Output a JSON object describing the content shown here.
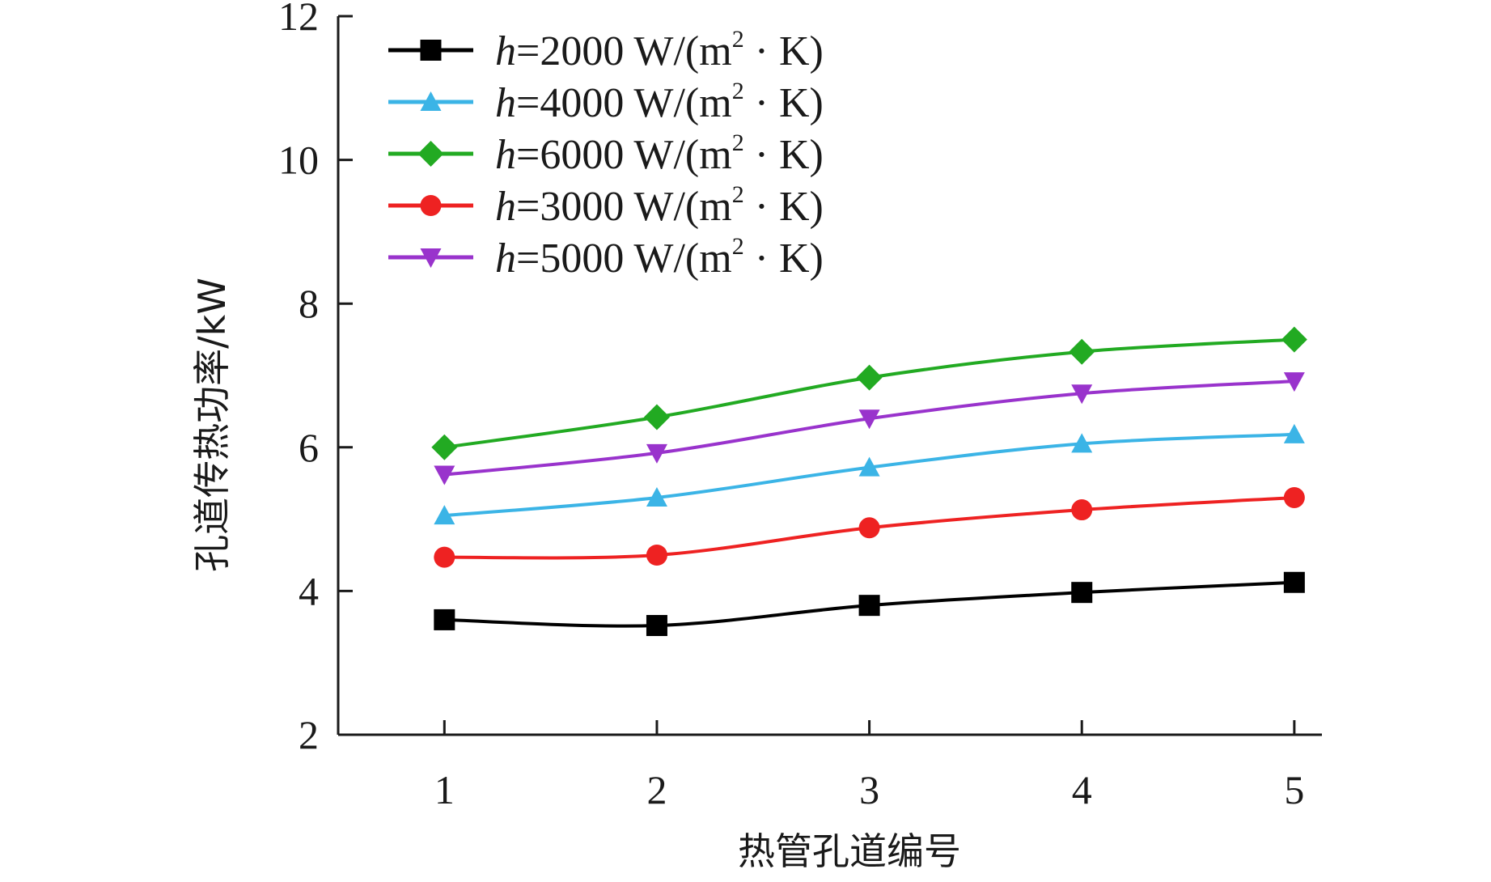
{
  "chart_data": {
    "type": "line",
    "xlabel": "热管孔道编号",
    "ylabel": "孔道传热功率/kW",
    "x": [
      1,
      2,
      3,
      4,
      5
    ],
    "xticks": [
      "1",
      "2",
      "3",
      "4",
      "5"
    ],
    "yticks": [
      "2",
      "4",
      "6",
      "8",
      "10",
      "12"
    ],
    "xlim": [
      0.5,
      5.13
    ],
    "ylim": [
      2,
      12
    ],
    "grid": false,
    "legend_position": "top-left",
    "series": [
      {
        "name": "h=2000 W/(m² · K)",
        "legend": {
          "h": "h",
          "body": "=2000 W/(m",
          "sup": "2",
          "tail": " · K)"
        },
        "values": [
          3.6,
          3.52,
          3.8,
          3.98,
          4.12
        ],
        "color": "#000000",
        "marker": "square"
      },
      {
        "name": "h=4000 W/(m² · K)",
        "legend": {
          "h": "h",
          "body": "=4000 W/(m",
          "sup": "2",
          "tail": " · K)"
        },
        "values": [
          5.05,
          5.3,
          5.72,
          6.05,
          6.18
        ],
        "color": "#3bb4e6",
        "marker": "triangle-up"
      },
      {
        "name": "h=6000 W/(m² · K)",
        "legend": {
          "h": "h",
          "body": "=6000 W/(m",
          "sup": "2",
          "tail": " · K)"
        },
        "values": [
          6.0,
          6.42,
          6.97,
          7.33,
          7.5
        ],
        "color": "#22aa22",
        "marker": "diamond"
      },
      {
        "name": "h=3000 W/(m² · K)",
        "legend": {
          "h": "h",
          "body": "=3000 W/(m",
          "sup": "2",
          "tail": " · K)"
        },
        "values": [
          4.47,
          4.5,
          4.88,
          5.13,
          5.3
        ],
        "color": "#ee2222",
        "marker": "circle"
      },
      {
        "name": "h=5000 W/(m² · K)",
        "legend": {
          "h": "h",
          "body": "=5000 W/(m",
          "sup": "2",
          "tail": " · K)"
        },
        "values": [
          5.62,
          5.92,
          6.4,
          6.75,
          6.92
        ],
        "color": "#9933cc",
        "marker": "triangle-down"
      }
    ]
  }
}
